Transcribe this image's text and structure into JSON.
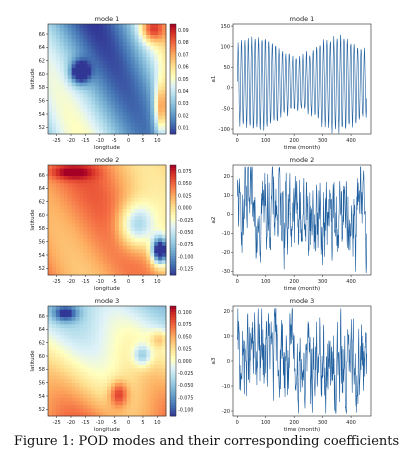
{
  "caption": "Figure 1: POD modes and their corresponding coefficients",
  "chart_data": [
    {
      "type": "heatmap",
      "title": "mode 1",
      "xlabel": "longitude",
      "ylabel": "latitude",
      "xticks": [
        -25,
        -20,
        -15,
        -10,
        -5,
        0,
        5,
        10
      ],
      "yticks": [
        52,
        54,
        56,
        58,
        60,
        62,
        64,
        66
      ],
      "xlim": [
        -28,
        13
      ],
      "ylim": [
        51,
        67.5
      ],
      "colorbar": [
        0.01,
        0.02,
        0.03,
        0.04,
        0.05,
        0.06,
        0.07,
        0.08,
        0.09
      ],
      "colorscale": "RdYlBu_r"
    },
    {
      "type": "line",
      "title": "mode 1",
      "xlabel": "time (month)",
      "ylabel": "a1",
      "xticks": [
        0,
        100,
        200,
        300,
        400
      ],
      "yticks": [
        -100,
        -50,
        0,
        50,
        100,
        150
      ],
      "xlim": [
        -15,
        470
      ],
      "ylim": [
        -112,
        155
      ],
      "color": "#1f5f9f",
      "n_points": 456,
      "amplitude": 100
    },
    {
      "type": "heatmap",
      "title": "mode 2",
      "xlabel": "longitude",
      "ylabel": "latitude",
      "xticks": [
        -25,
        -20,
        -15,
        -10,
        -5,
        0,
        5,
        10
      ],
      "yticks": [
        52,
        54,
        56,
        58,
        60,
        62,
        64,
        66
      ],
      "xlim": [
        -28,
        13
      ],
      "ylim": [
        51,
        67.5
      ],
      "colorbar": [
        "0.075",
        "0.050",
        "0.025",
        "0.000",
        "-0.025",
        "-0.050",
        "-0.075",
        "-0.100",
        "-0.125"
      ],
      "colorscale": "RdYlBu_r"
    },
    {
      "type": "line",
      "title": "mode 2",
      "xlabel": "time (month)",
      "ylabel": "a2",
      "xticks": [
        0,
        100,
        200,
        300,
        400
      ],
      "yticks": [
        -30,
        -20,
        -10,
        0,
        10,
        20
      ],
      "xlim": [
        -15,
        470
      ],
      "ylim": [
        -32,
        26
      ],
      "color": "#1f5f9f",
      "n_points": 456,
      "amplitude": 25
    },
    {
      "type": "heatmap",
      "title": "mode 3",
      "xlabel": "longitude",
      "ylabel": "latitude",
      "xticks": [
        -25,
        -20,
        -15,
        -10,
        -5,
        0,
        5,
        10
      ],
      "yticks": [
        52,
        54,
        56,
        58,
        60,
        62,
        64,
        66
      ],
      "xlim": [
        -28,
        13
      ],
      "ylim": [
        51,
        67.5
      ],
      "colorbar": [
        "0.100",
        "0.075",
        "0.050",
        "0.025",
        "0.000",
        "-0.025",
        "-0.050",
        "-0.075",
        "-0.100"
      ],
      "colorscale": "RdYlBu_r"
    },
    {
      "type": "line",
      "title": "mode 3",
      "xlabel": "time (month)",
      "ylabel": "a3",
      "xticks": [
        0,
        100,
        200,
        300,
        400
      ],
      "yticks": [
        -20,
        -10,
        0,
        10,
        20
      ],
      "xlim": [
        -15,
        470
      ],
      "ylim": [
        -22,
        22
      ],
      "color": "#1f5f9f",
      "n_points": 456,
      "amplitude": 20
    }
  ]
}
